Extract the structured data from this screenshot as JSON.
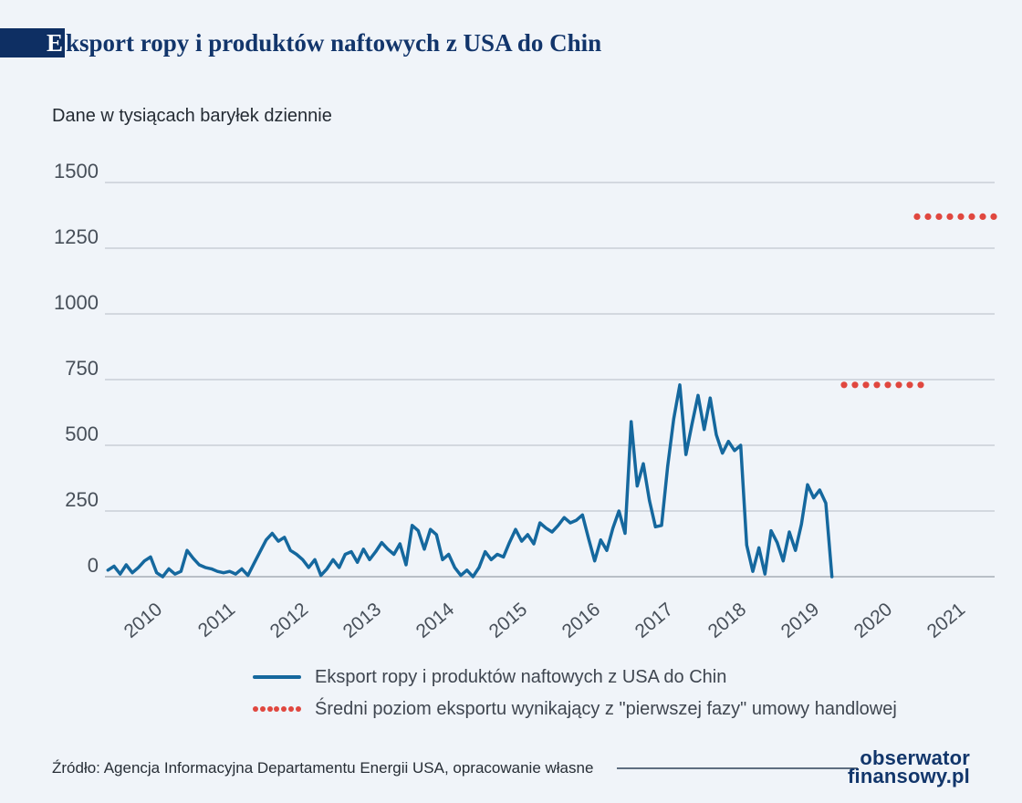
{
  "page": {
    "title_initial": "E",
    "title_rest": "ksport ropy i produktów naftowych z USA do Chin",
    "subtitle": "Dane w tysiącach baryłek dziennie",
    "source": "Źródło: Agencja Informacyjna Departamentu Energii USA, opracowanie własne",
    "logo_line1": "obserwator",
    "logo_line2": "finansowy.pl"
  },
  "colors": {
    "background": "#F0F4F9",
    "accent_navy": "#0E2F63",
    "line_blue": "#15689E",
    "dots_red": "#E0473F",
    "gridline": "#D3D8DF"
  },
  "legend": [
    {
      "type": "line",
      "color": "#15689E",
      "label": "Eksport ropy i produktów naftowych z USA do Chin"
    },
    {
      "type": "dots",
      "color": "#E0473F",
      "label": "Średni poziom eksportu wynikający z \"pierwszej fazy\" umowy handlowej"
    }
  ],
  "chart_data": {
    "type": "line",
    "title": "Eksport ropy i produktów naftowych z USA do Chin",
    "unit": "tysiące baryłek dziennie",
    "ylim": [
      0,
      1500
    ],
    "yticks": [
      0,
      250,
      500,
      750,
      1000,
      1250,
      1500
    ],
    "xticks": [
      2010,
      2011,
      2012,
      2013,
      2014,
      2015,
      2016,
      2017,
      2018,
      2019,
      2020,
      2021
    ],
    "grid": "horizontal",
    "legend_position": "bottom",
    "series": [
      {
        "name": "Eksport ropy i produktów naftowych z USA do Chin",
        "style": "solid",
        "color": "#15689E",
        "start": "2009-06",
        "frequency": "monthly",
        "values": [
          25,
          40,
          10,
          45,
          15,
          35,
          60,
          75,
          15,
          0,
          30,
          10,
          20,
          100,
          70,
          45,
          35,
          30,
          20,
          15,
          20,
          10,
          30,
          5,
          50,
          95,
          140,
          165,
          135,
          150,
          100,
          85,
          65,
          35,
          65,
          5,
          30,
          65,
          35,
          85,
          95,
          55,
          105,
          65,
          95,
          130,
          105,
          85,
          125,
          45,
          195,
          175,
          105,
          180,
          160,
          65,
          85,
          35,
          5,
          25,
          0,
          35,
          95,
          65,
          85,
          75,
          130,
          180,
          135,
          160,
          125,
          205,
          185,
          170,
          195,
          225,
          205,
          215,
          235,
          145,
          60,
          140,
          100,
          185,
          250,
          165,
          590,
          345,
          430,
          290,
          190,
          195,
          420,
          600,
          730,
          465,
          580,
          690,
          560,
          680,
          540,
          470,
          515,
          480,
          500,
          120,
          20,
          110,
          10,
          175,
          130,
          60,
          170,
          100,
          200,
          350,
          300,
          330,
          280,
          0
        ]
      }
    ],
    "reference_segments": [
      {
        "name": "phase-one-target-2020",
        "year": 2020,
        "value": 730,
        "x_start": 2019.5,
        "x_end": 2020.55,
        "style": "dotted",
        "color": "#E0473F"
      },
      {
        "name": "phase-one-target-2021",
        "year": 2021,
        "value": 1370,
        "x_start": 2020.5,
        "x_end": 2021.55,
        "style": "dotted",
        "color": "#E0473F"
      }
    ]
  }
}
